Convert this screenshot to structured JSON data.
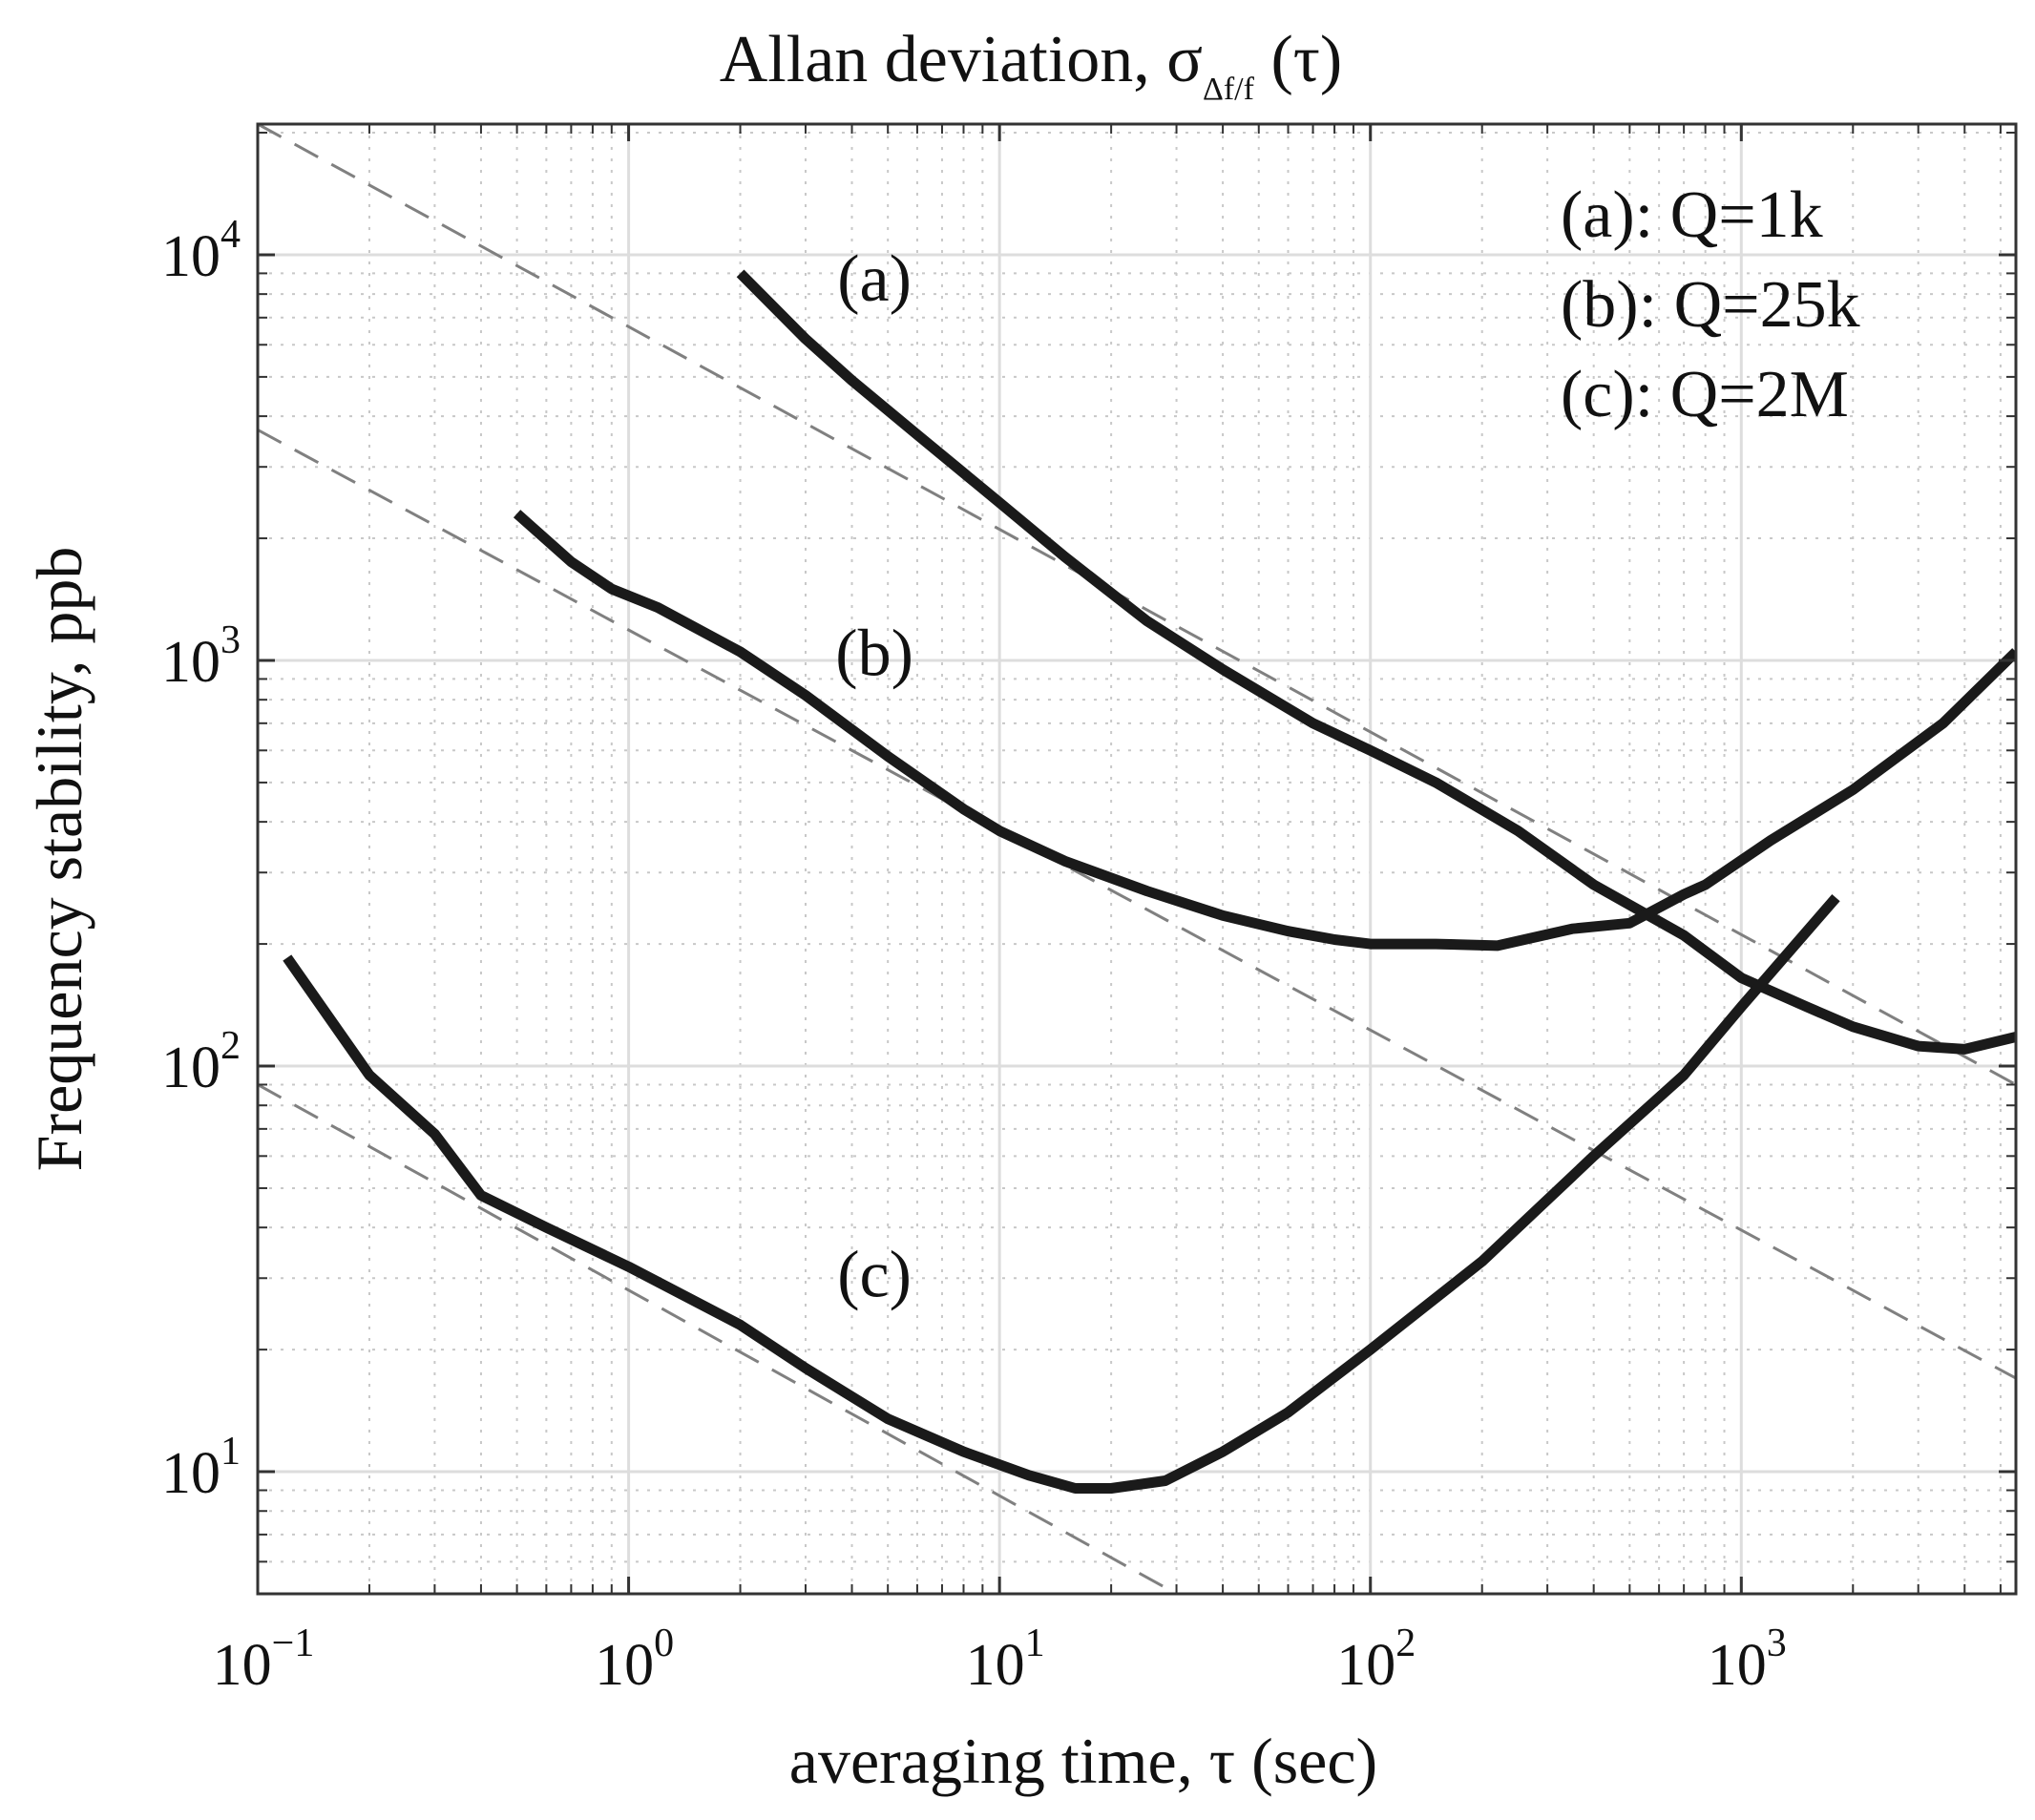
{
  "chart_data": {
    "type": "line",
    "title_main": "Allan deviation, σ",
    "title_sub": "Δf/f",
    "title_tail": " (τ)",
    "xlabel": "averaging time, τ (sec)",
    "ylabel": "Frequency stability, ppb",
    "xscale": "log",
    "yscale": "log",
    "xlim": [
      0.1,
      5500
    ],
    "ylim": [
      5,
      21000
    ],
    "grid": true,
    "x_ticks": [
      {
        "value": 0.1,
        "base": "10",
        "exp": "−1"
      },
      {
        "value": 1,
        "base": "10",
        "exp": "0"
      },
      {
        "value": 10,
        "base": "10",
        "exp": "1"
      },
      {
        "value": 100,
        "base": "10",
        "exp": "2"
      },
      {
        "value": 1000,
        "base": "10",
        "exp": "3"
      }
    ],
    "y_ticks": [
      {
        "value": 10,
        "base": "10",
        "exp": "1"
      },
      {
        "value": 100,
        "base": "10",
        "exp": "2"
      },
      {
        "value": 1000,
        "base": "10",
        "exp": "3"
      },
      {
        "value": 10000,
        "base": "10",
        "exp": "4"
      }
    ],
    "legend": {
      "placement": "top-right",
      "entries": [
        "(a): Q=1k",
        "(b): Q=25k",
        "(c): Q=2M"
      ]
    },
    "series": [
      {
        "name": "(a): Q=1k",
        "label": "(a)",
        "label_pos": [
          4.6,
          7700
        ],
        "points": [
          [
            2,
            9000
          ],
          [
            3,
            6200
          ],
          [
            4,
            4900
          ],
          [
            6,
            3600
          ],
          [
            10,
            2450
          ],
          [
            15,
            1800
          ],
          [
            25,
            1250
          ],
          [
            40,
            950
          ],
          [
            70,
            700
          ],
          [
            100,
            600
          ],
          [
            150,
            500
          ],
          [
            250,
            380
          ],
          [
            400,
            280
          ],
          [
            700,
            210
          ],
          [
            1000,
            165
          ],
          [
            1500,
            140
          ],
          [
            2000,
            125
          ],
          [
            3000,
            112
          ],
          [
            4000,
            110
          ],
          [
            5500,
            118
          ]
        ],
        "color": "#1a1a1a"
      },
      {
        "name": "(b): Q=25k",
        "label": "(b)",
        "label_pos": [
          4.6,
          920
        ],
        "points": [
          [
            0.5,
            2300
          ],
          [
            0.7,
            1750
          ],
          [
            0.9,
            1500
          ],
          [
            1.2,
            1350
          ],
          [
            2,
            1050
          ],
          [
            3,
            820
          ],
          [
            5,
            580
          ],
          [
            8,
            430
          ],
          [
            10,
            380
          ],
          [
            15,
            320
          ],
          [
            25,
            270
          ],
          [
            40,
            235
          ],
          [
            60,
            215
          ],
          [
            80,
            205
          ],
          [
            100,
            200
          ],
          [
            150,
            200
          ],
          [
            220,
            198
          ],
          [
            350,
            218
          ],
          [
            500,
            225
          ],
          [
            700,
            265
          ],
          [
            800,
            280
          ],
          [
            1200,
            360
          ],
          [
            2000,
            480
          ],
          [
            3500,
            700
          ],
          [
            5500,
            1050
          ]
        ],
        "color": "#1a1a1a"
      },
      {
        "name": "(c): Q=2M",
        "label": "(c)",
        "label_pos": [
          4.6,
          27
        ],
        "points": [
          [
            0.12,
            185
          ],
          [
            0.2,
            95
          ],
          [
            0.3,
            68
          ],
          [
            0.4,
            48
          ],
          [
            0.6,
            40
          ],
          [
            1,
            32
          ],
          [
            2,
            23
          ],
          [
            3,
            18
          ],
          [
            5,
            13.5
          ],
          [
            8,
            11.2
          ],
          [
            12,
            9.8
          ],
          [
            16,
            9.1
          ],
          [
            20,
            9.1
          ],
          [
            28,
            9.5
          ],
          [
            40,
            11.2
          ],
          [
            60,
            14
          ],
          [
            100,
            20
          ],
          [
            200,
            33
          ],
          [
            400,
            60
          ],
          [
            700,
            95
          ],
          [
            1000,
            140
          ],
          [
            1800,
            260
          ]
        ],
        "color": "#1a1a1a"
      }
    ],
    "reference_lines": [
      {
        "style": "dashed",
        "color": "#808080",
        "points": [
          [
            0.1,
            21000
          ],
          [
            5500,
            90
          ]
        ]
      },
      {
        "style": "dashed",
        "color": "#808080",
        "points": [
          [
            0.1,
            3700
          ],
          [
            5500,
            17
          ]
        ]
      },
      {
        "style": "dashed",
        "color": "#808080",
        "points": [
          [
            0.1,
            90
          ],
          [
            30,
            5
          ]
        ]
      }
    ]
  }
}
